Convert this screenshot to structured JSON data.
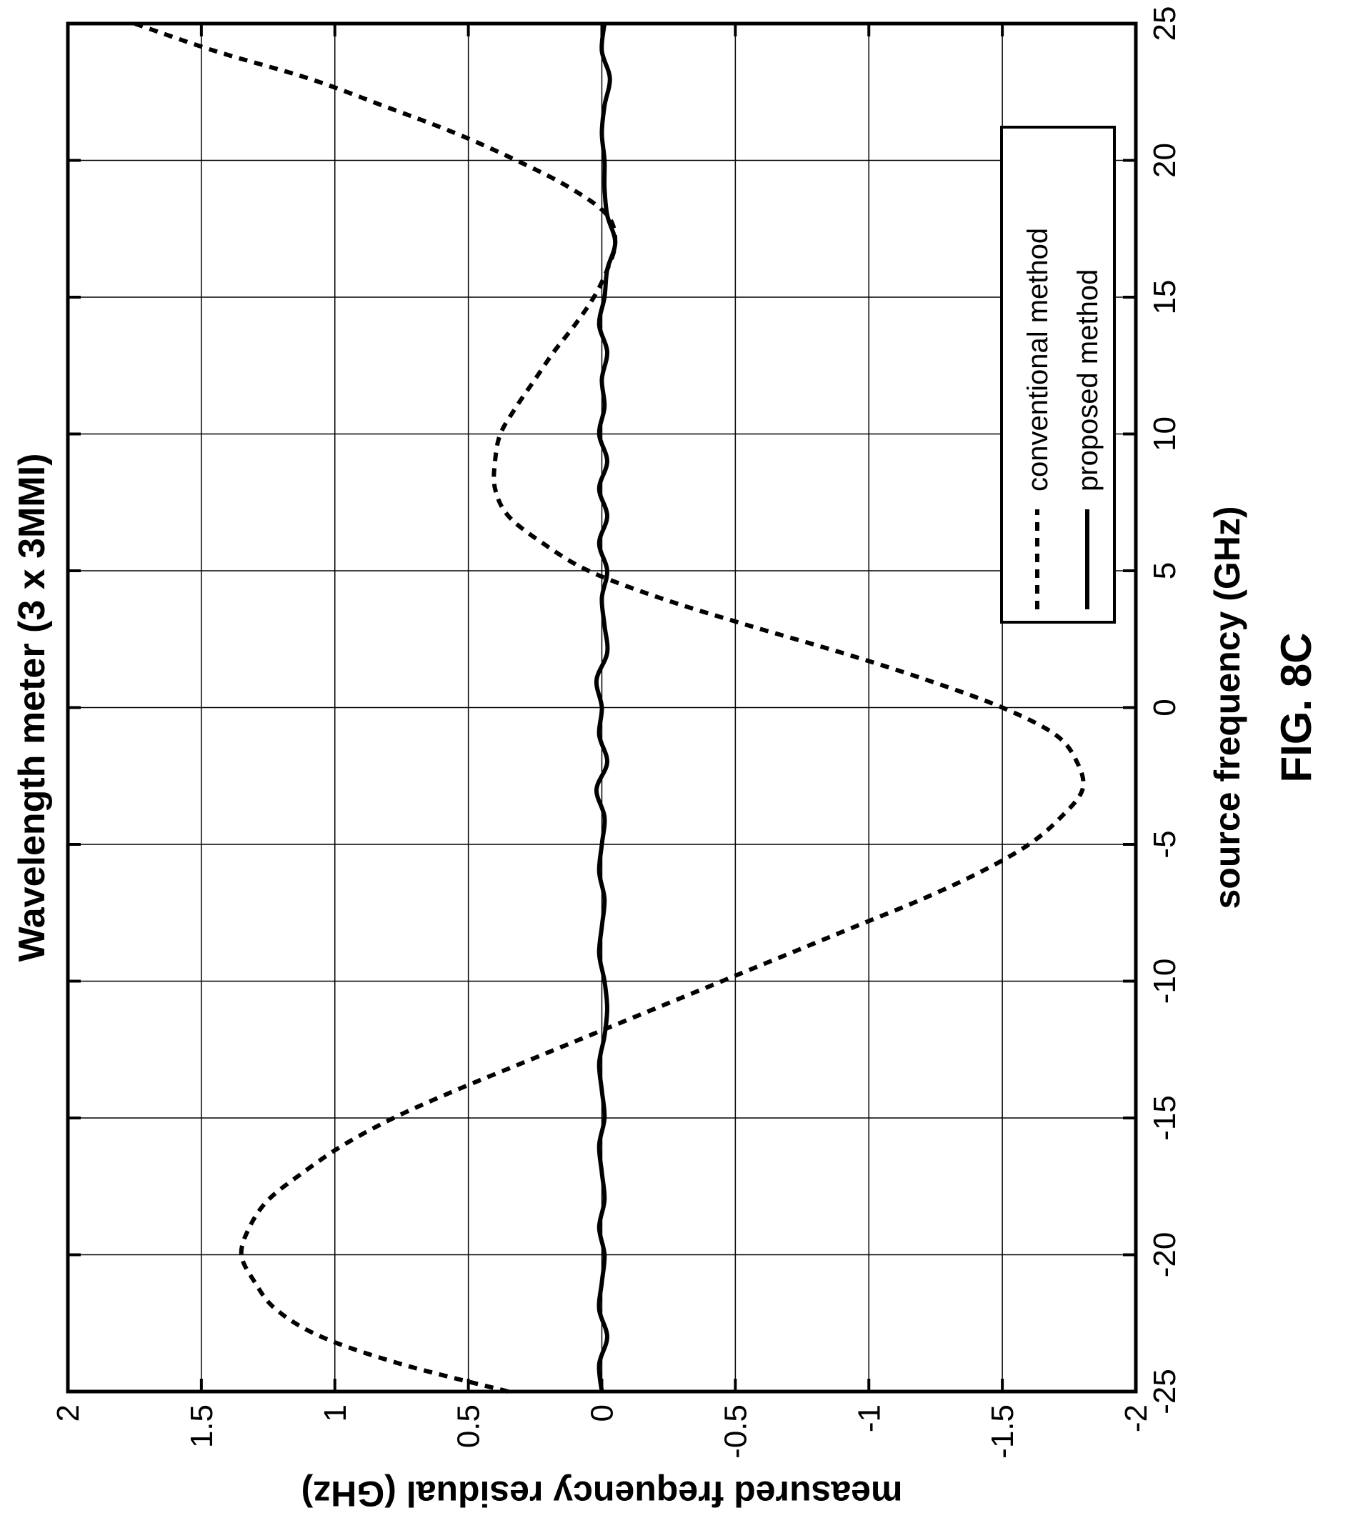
{
  "figure_label": "FIG. 8C",
  "chart_data": {
    "type": "line",
    "title": "Wavelength meter (3 x 3MMI)",
    "xlabel": "source frequency (GHz)",
    "ylabel": "measured frequency residual (GHz)",
    "xlim": [
      -25,
      25
    ],
    "ylim": [
      -2,
      2
    ],
    "xticks": [
      "-25",
      "-20",
      "-15",
      "-10",
      "-5",
      "0",
      "5",
      "10",
      "15",
      "20",
      "25"
    ],
    "yticks": [
      "2",
      "1.5",
      "1",
      "0.5",
      "0",
      "-0.5",
      "-1",
      "-1.5",
      "-2"
    ],
    "grid": true,
    "legend_position": "top-right",
    "series": [
      {
        "name": "conventional method",
        "style": "dashed",
        "x": [
          -25,
          -24,
          -23,
          -22,
          -21,
          -20,
          -19,
          -18,
          -17,
          -16,
          -15,
          -14,
          -13,
          -12,
          -11,
          -10,
          -9,
          -8,
          -7,
          -6,
          -5,
          -4,
          -3,
          -2,
          -1,
          0,
          1,
          2,
          3,
          4,
          5,
          6,
          7,
          8,
          9,
          10,
          11,
          12,
          13,
          14,
          15,
          16,
          17,
          18,
          19,
          20,
          21,
          22,
          23,
          24,
          25
        ],
        "y": [
          0.35,
          0.75,
          1.05,
          1.22,
          1.3,
          1.35,
          1.32,
          1.25,
          1.12,
          0.97,
          0.78,
          0.55,
          0.3,
          0.05,
          -0.2,
          -0.45,
          -0.7,
          -0.95,
          -1.2,
          -1.42,
          -1.6,
          -1.72,
          -1.8,
          -1.78,
          -1.7,
          -1.5,
          -1.22,
          -0.9,
          -0.55,
          -0.22,
          0.05,
          0.22,
          0.35,
          0.4,
          0.4,
          0.38,
          0.32,
          0.25,
          0.18,
          0.1,
          0.03,
          -0.02,
          -0.05,
          -0.02,
          0.12,
          0.32,
          0.55,
          0.82,
          1.1,
          1.45,
          1.75
        ]
      },
      {
        "name": "proposed method",
        "style": "solid",
        "x": [
          -25,
          -24,
          -23,
          -22,
          -21,
          -20,
          -19,
          -18,
          -17,
          -16,
          -15,
          -14,
          -13,
          -12,
          -11,
          -10,
          -9,
          -8,
          -7,
          -6,
          -5,
          -4,
          -3,
          -2,
          -1,
          0,
          1,
          2,
          3,
          4,
          5,
          6,
          7,
          8,
          9,
          10,
          11,
          12,
          13,
          14,
          15,
          16,
          17,
          18,
          19,
          20,
          21,
          22,
          23,
          24,
          25
        ],
        "y": [
          0.0,
          0.01,
          -0.02,
          0.01,
          0.0,
          -0.01,
          0.01,
          -0.01,
          0.0,
          0.01,
          -0.01,
          0.0,
          0.01,
          -0.01,
          -0.02,
          -0.01,
          0.01,
          0.0,
          -0.01,
          0.01,
          0.0,
          -0.01,
          0.02,
          -0.02,
          0.01,
          0.0,
          0.02,
          -0.02,
          -0.01,
          0.0,
          -0.02,
          0.01,
          -0.02,
          0.01,
          -0.02,
          0.01,
          -0.01,
          0.0,
          -0.02,
          0.01,
          -0.01,
          -0.02,
          -0.05,
          -0.02,
          -0.01,
          -0.01,
          0.0,
          -0.01,
          -0.03,
          0.0,
          -0.01
        ]
      }
    ]
  }
}
